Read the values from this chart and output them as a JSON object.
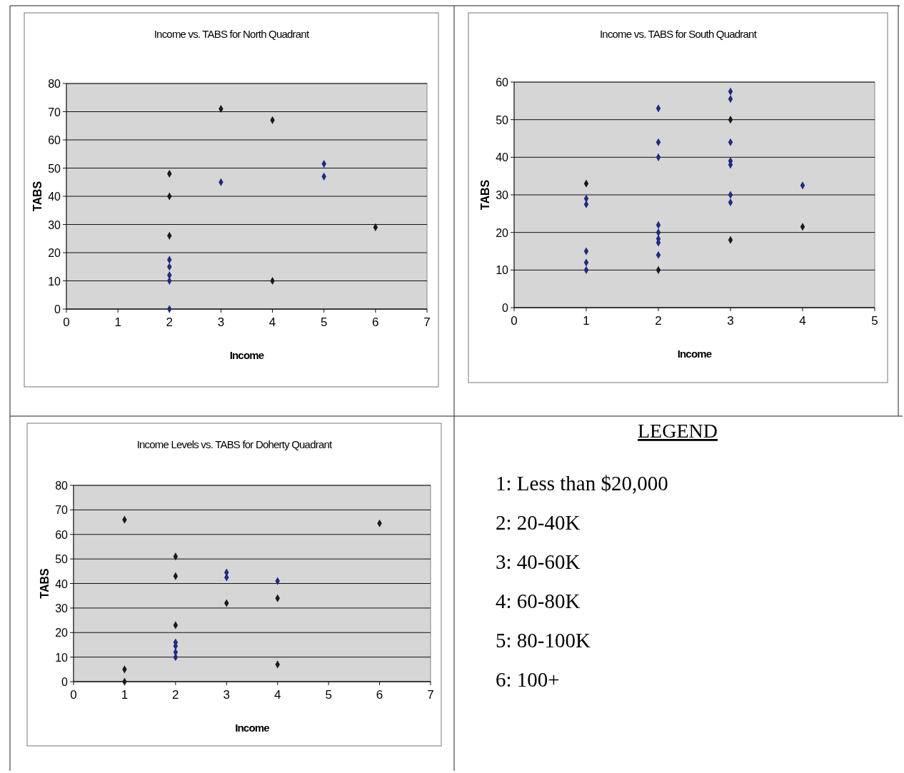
{
  "chart_data": [
    {
      "type": "scatter",
      "title": "Income vs. TABS for North Quadrant",
      "xlabel": "Income",
      "ylabel": "TABS",
      "xlim": [
        0,
        7
      ],
      "xticks": [
        0,
        1,
        2,
        3,
        4,
        5,
        6,
        7
      ],
      "ylim": [
        0,
        80
      ],
      "yticks": [
        0,
        10,
        20,
        30,
        40,
        50,
        60,
        70,
        80
      ],
      "grid": "y",
      "marker": "diamond",
      "series": [
        {
          "x": [
            2,
            2,
            2,
            2,
            2,
            2,
            2,
            2,
            3,
            3,
            4,
            4,
            5,
            5,
            6
          ],
          "values": [
            48,
            40,
            26,
            17.5,
            15,
            12,
            10,
            0,
            71,
            45,
            67,
            10,
            51.5,
            47,
            29
          ],
          "colors": [
            "#1a1a1a",
            "#1a1a1a",
            "#1a1a1a",
            "#1f2a80",
            "#1f2a80",
            "#1f2a80",
            "#1f2a80",
            "#1f2a80",
            "#1a1a1a",
            "#1f2a80",
            "#1a1a1a",
            "#1a1a1a",
            "#1f2a80",
            "#1f2a80",
            "#1a1a1a"
          ]
        }
      ]
    },
    {
      "type": "scatter",
      "title": "Income vs. TABS for South Quadrant",
      "xlabel": "Income",
      "ylabel": "TABS",
      "xlim": [
        0,
        5
      ],
      "xticks": [
        0,
        1,
        2,
        3,
        4,
        5
      ],
      "ylim": [
        0,
        60
      ],
      "yticks": [
        0,
        10,
        20,
        30,
        40,
        50,
        60
      ],
      "grid": "y",
      "marker": "diamond",
      "series": [
        {
          "x": [
            1,
            1,
            1,
            1,
            1,
            1,
            2,
            2,
            2,
            2,
            2,
            2,
            2,
            2,
            2,
            3,
            3,
            3,
            3,
            3,
            3,
            3,
            3,
            3,
            4,
            4
          ],
          "values": [
            33,
            29,
            27.5,
            15,
            12,
            10,
            53,
            44,
            40,
            22,
            20,
            18.3,
            17.3,
            14,
            10,
            57.5,
            55.5,
            50,
            44,
            39,
            38,
            30,
            28,
            18,
            32.5,
            21.5
          ],
          "colors": [
            "#1a1a1a",
            "#1f2a80",
            "#1f2a80",
            "#1f2a80",
            "#1f2a80",
            "#1f2a80",
            "#1f2a80",
            "#1f2a80",
            "#1f2a80",
            "#1f2a80",
            "#1f2a80",
            "#1f2a80",
            "#1f2a80",
            "#1f2a80",
            "#1a1a1a",
            "#1f2a80",
            "#1f2a80",
            "#1a1a1a",
            "#1f2a80",
            "#1f2a80",
            "#1f2a80",
            "#1f2a80",
            "#1f2a80",
            "#1a1a1a",
            "#1f2a80",
            "#1a1a1a"
          ]
        }
      ]
    },
    {
      "type": "scatter",
      "title": "Income Levels vs. TABS for Doherty Quadrant",
      "xlabel": "Income",
      "ylabel": "TABS",
      "xlim": [
        0,
        7
      ],
      "xticks": [
        0,
        1,
        2,
        3,
        4,
        5,
        6,
        7
      ],
      "ylim": [
        0,
        80
      ],
      "yticks": [
        0,
        10,
        20,
        30,
        40,
        50,
        60,
        70,
        80
      ],
      "grid": "y",
      "marker": "diamond",
      "series": [
        {
          "x": [
            1,
            1,
            1,
            2,
            2,
            2,
            2,
            2,
            2,
            2,
            3,
            3,
            3,
            4,
            4,
            4,
            6
          ],
          "values": [
            66,
            5,
            0,
            51,
            43,
            23,
            16,
            14.5,
            12,
            10,
            44.5,
            42.5,
            32,
            41,
            34,
            7,
            64.5
          ],
          "colors": [
            "#1a1a1a",
            "#1a1a1a",
            "#1a1a1a",
            "#1a1a1a",
            "#1a1a1a",
            "#1a1a1a",
            "#1f2a80",
            "#1f2a80",
            "#1f2a80",
            "#1f2a80",
            "#1f2a80",
            "#1f2a80",
            "#1a1a1a",
            "#1f2a80",
            "#1a1a1a",
            "#1a1a1a",
            "#1a1a1a"
          ]
        }
      ]
    },
    {
      "type": "other",
      "title": "LEGEND",
      "annotations": [
        "1: Less than $20,000",
        "2: 20-40K",
        "3: 40-60K",
        "4: 60-80K",
        "5: 80-100K",
        "6: 100+"
      ]
    }
  ]
}
